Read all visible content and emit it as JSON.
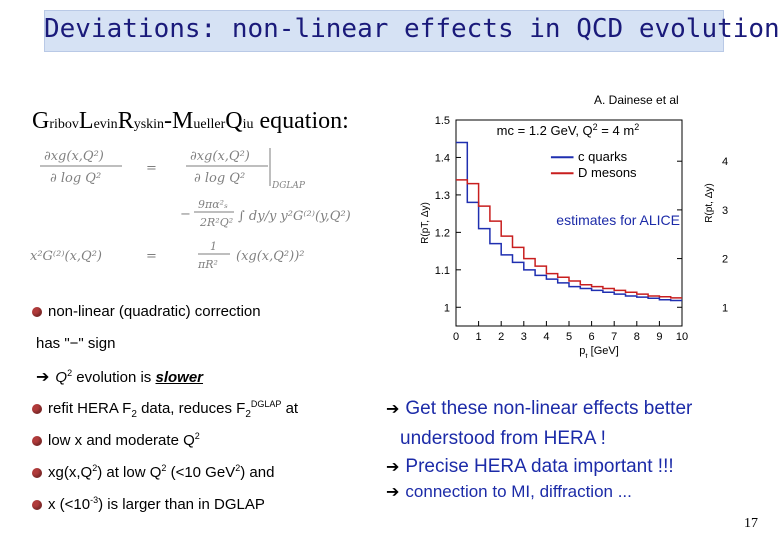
{
  "title": "Deviations: non-linear effects in QCD evolution?",
  "equation_heading": {
    "parts": [
      {
        "big": "G",
        "small": "ribov"
      },
      {
        "big": "L",
        "small": "evin"
      },
      {
        "big": "R",
        "small": "yskin"
      },
      {
        "big": "-M",
        "small": "ueller"
      },
      {
        "big": "Q",
        "small": "iu"
      }
    ],
    "suffix": " equation:"
  },
  "credit": "A. Dainese et al",
  "bullets": {
    "nonlinear": "non-linear (quadratic) correction",
    "sign": "has \"−\" sign",
    "q2_prefix": "Q",
    "q2_sup": "2",
    "q2_text": " evolution is ",
    "q2_emph": "slower",
    "refit_a": "refit HERA F",
    "refit_sub1": "2",
    "refit_b": " data, reduces F",
    "refit_sub2": "2",
    "refit_sup": "DGLAP",
    "refit_c": " at",
    "lowx_a": "low x and moderate Q",
    "lowx_sup": "2",
    "xg_a": "xg(x,Q",
    "xg_sup1": "2",
    "xg_b": ") at low Q",
    "xg_sup2": "2",
    "xg_c": " (<10 GeV",
    "xg_sup3": "2",
    "xg_d": ") and",
    "xsmall_a": "x (<10",
    "xsmall_sup": "-3",
    "xsmall_b": ") is larger than in DGLAP"
  },
  "right_points": {
    "p1_line1": "Get these non-linear effects better",
    "p1_line2": "understood from HERA !",
    "p2": "Precise HERA data important !!!",
    "p3": "connection to MI, diffraction ..."
  },
  "page_number": "17",
  "chart_data": {
    "type": "line",
    "title": "m",
    "annotation_params": "c = 1.2 GeV, Q",
    "annotation_sup1": "2",
    "annotation_eq": " = 4 m",
    "annotation_sup2": "2",
    "annotation_extra": "estimates for ALICE",
    "xlabel_main": "p",
    "xlabel_sub": "t",
    "xlabel_unit": " [GeV]",
    "ylabel_left": "R(pT, Δy)",
    "ylabel_right": "R(pt, Δy)",
    "xlim": [
      0,
      10
    ],
    "ylim": [
      0.95,
      1.5
    ],
    "x_ticks": [
      "0",
      "1",
      "2",
      "3",
      "4",
      "5",
      "6",
      "7",
      "8",
      "9",
      "10"
    ],
    "y_ticks_left": [
      "1",
      "1.1",
      "1.2",
      "1.3",
      "1.4",
      "1.5"
    ],
    "y_ticks_left_values": [
      1,
      1.1,
      1.2,
      1.3,
      1.4,
      1.5
    ],
    "y_ticks_right": [
      "1",
      "2",
      "3",
      "4"
    ],
    "y_ticks_right_values": [
      1.0,
      1.13,
      1.26,
      1.39
    ],
    "legend": [
      "c quarks",
      "D mesons"
    ],
    "series": [
      {
        "name": "c quarks",
        "color": "#1f2fb0",
        "x": [
          0,
          0.5,
          0.5,
          1,
          1,
          1.5,
          1.5,
          2,
          2,
          2.5,
          2.5,
          3,
          3,
          3.5,
          3.5,
          4,
          4,
          4.5,
          4.5,
          5,
          5,
          5.5,
          5.5,
          6,
          6,
          6.5,
          6.5,
          7,
          7,
          7.5,
          7.5,
          8,
          8,
          8.5,
          8.5,
          9,
          9,
          9.5,
          9.5,
          10
        ],
        "values": [
          1.44,
          1.44,
          1.28,
          1.28,
          1.21,
          1.21,
          1.17,
          1.17,
          1.14,
          1.14,
          1.12,
          1.12,
          1.1,
          1.1,
          1.085,
          1.085,
          1.075,
          1.075,
          1.065,
          1.065,
          1.055,
          1.055,
          1.05,
          1.05,
          1.045,
          1.045,
          1.04,
          1.04,
          1.035,
          1.035,
          1.03,
          1.03,
          1.027,
          1.027,
          1.024,
          1.024,
          1.02,
          1.02,
          1.018,
          1.018
        ]
      },
      {
        "name": "D mesons",
        "color": "#c81e1e",
        "x": [
          0,
          0.5,
          0.5,
          1,
          1,
          1.5,
          1.5,
          2,
          2,
          2.5,
          2.5,
          3,
          3,
          3.5,
          3.5,
          4,
          4,
          4.5,
          4.5,
          5,
          5,
          5.5,
          5.5,
          6,
          6,
          6.5,
          6.5,
          7,
          7,
          7.5,
          7.5,
          8,
          8,
          8.5,
          8.5,
          9,
          9,
          9.5,
          9.5,
          10
        ],
        "values": [
          1.34,
          1.34,
          1.33,
          1.33,
          1.27,
          1.27,
          1.23,
          1.23,
          1.19,
          1.19,
          1.16,
          1.16,
          1.13,
          1.13,
          1.11,
          1.11,
          1.09,
          1.09,
          1.08,
          1.08,
          1.07,
          1.07,
          1.06,
          1.06,
          1.055,
          1.055,
          1.05,
          1.05,
          1.045,
          1.045,
          1.04,
          1.04,
          1.035,
          1.035,
          1.03,
          1.03,
          1.028,
          1.028,
          1.025,
          1.025
        ]
      }
    ]
  }
}
